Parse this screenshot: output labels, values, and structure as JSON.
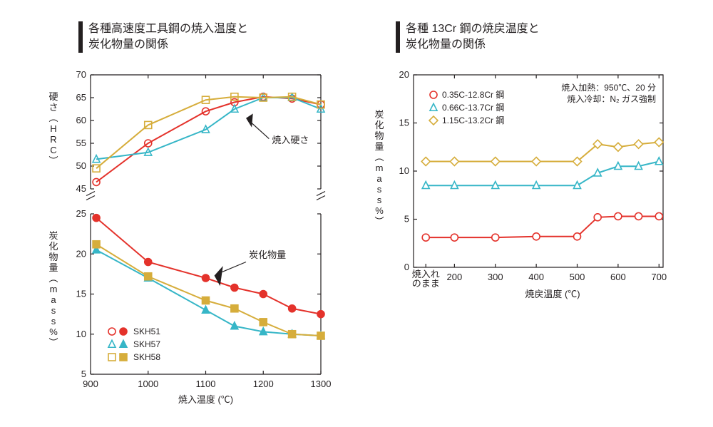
{
  "left": {
    "title_line1": "各種高速度工具鋼の焼入温度と",
    "title_line2": "炭化物量の関係",
    "title_fontsize": 16,
    "title_bar_color": "#231f20",
    "background_color": "#ffffff",
    "axis_color": "#231f20",
    "xlabel": "焼入温度 (℃)",
    "xlim": [
      900,
      1300
    ],
    "xticks": [
      900,
      1000,
      1100,
      1200,
      1300
    ],
    "top_panel": {
      "ylabel_chars": [
        "硬",
        "さ",
        "︵",
        "H",
        "R",
        "C",
        "︶"
      ],
      "ylim": [
        45,
        70
      ],
      "yticks": [
        45,
        50,
        55,
        60,
        65,
        70
      ],
      "annotation": "焼入硬さ",
      "series": [
        {
          "name": "SKH51",
          "color": "#e4322b",
          "marker": "circle",
          "fill": "none",
          "data": [
            [
              910,
              46.5
            ],
            [
              1000,
              55
            ],
            [
              1100,
              62
            ],
            [
              1150,
              64
            ],
            [
              1200,
              65.2
            ],
            [
              1250,
              64.8
            ],
            [
              1300,
              63.5
            ]
          ]
        },
        {
          "name": "SKH57",
          "color": "#36b6c7",
          "marker": "triangle",
          "fill": "none",
          "data": [
            [
              910,
              51.5
            ],
            [
              1000,
              53
            ],
            [
              1100,
              58
            ],
            [
              1150,
              62.5
            ],
            [
              1200,
              65
            ],
            [
              1250,
              65
            ],
            [
              1300,
              62.5
            ]
          ]
        },
        {
          "name": "SKH58",
          "color": "#d6ad3b",
          "marker": "square",
          "fill": "none",
          "data": [
            [
              910,
              49.5
            ],
            [
              1000,
              59
            ],
            [
              1100,
              64.5
            ],
            [
              1150,
              65.2
            ],
            [
              1200,
              65
            ],
            [
              1250,
              65.2
            ],
            [
              1300,
              63.5
            ]
          ]
        }
      ]
    },
    "bottom_panel": {
      "ylabel_chars": [
        "炭",
        "化",
        "物",
        "量",
        "︵",
        "m",
        "a",
        "s",
        "s",
        "%",
        "︶"
      ],
      "ylim": [
        5,
        25
      ],
      "yticks": [
        5,
        10,
        15,
        20,
        25
      ],
      "annotation": "炭化物量",
      "series": [
        {
          "name": "SKH51",
          "color": "#e4322b",
          "marker": "circle",
          "fill": "#e4322b",
          "data": [
            [
              910,
              24.5
            ],
            [
              1000,
              19
            ],
            [
              1100,
              17
            ],
            [
              1150,
              15.8
            ],
            [
              1200,
              15
            ],
            [
              1250,
              13.2
            ],
            [
              1300,
              12.5
            ]
          ]
        },
        {
          "name": "SKH57",
          "color": "#36b6c7",
          "marker": "triangle",
          "fill": "#36b6c7",
          "data": [
            [
              910,
              20.5
            ],
            [
              1000,
              17
            ],
            [
              1100,
              13
            ],
            [
              1150,
              11
            ],
            [
              1200,
              10.3
            ],
            [
              1250,
              10
            ],
            [
              1300,
              9.8
            ]
          ]
        },
        {
          "name": "SKH58",
          "color": "#d6ad3b",
          "marker": "square",
          "fill": "#d6ad3b",
          "data": [
            [
              910,
              21.2
            ],
            [
              1000,
              17.2
            ],
            [
              1100,
              14.2
            ],
            [
              1150,
              13.2
            ],
            [
              1200,
              11.5
            ],
            [
              1250,
              10
            ],
            [
              1300,
              9.8
            ]
          ]
        }
      ]
    },
    "legend": {
      "items": [
        {
          "label": "SKH51",
          "color": "#e4322b",
          "marker": "circle"
        },
        {
          "label": "SKH57",
          "color": "#36b6c7",
          "marker": "triangle"
        },
        {
          "label": "SKH58",
          "color": "#d6ad3b",
          "marker": "square"
        }
      ]
    }
  },
  "right": {
    "title_line1": "各種 13Cr 鋼の焼戻温度と",
    "title_line2": "炭化物量の関係",
    "title_fontsize": 16,
    "background_color": "#ffffff",
    "axis_color": "#231f20",
    "xlabel": "焼戻温度 (℃)",
    "x_first_tick_line1": "焼入れ",
    "x_first_tick_line2": "のまま",
    "xlim": [
      100,
      710
    ],
    "xticks_num": [
      200,
      300,
      400,
      500,
      600,
      700
    ],
    "ylabel_chars": [
      "炭",
      "化",
      "物",
      "量",
      "︵",
      "m",
      "a",
      "s",
      "s",
      "%",
      "︶"
    ],
    "ylim": [
      0,
      20
    ],
    "yticks": [
      0,
      5,
      10,
      15,
      20
    ],
    "cond_line1": "焼入加熱：950℃、20 分",
    "cond_line2": "焼入冷却：N₂ ガス強制",
    "series": [
      {
        "name": "0.35C-12.8Cr 鋼",
        "color": "#e4322b",
        "marker": "circle",
        "data": [
          [
            130,
            3.1
          ],
          [
            200,
            3.1
          ],
          [
            300,
            3.1
          ],
          [
            400,
            3.2
          ],
          [
            500,
            3.2
          ],
          [
            550,
            5.2
          ],
          [
            600,
            5.3
          ],
          [
            650,
            5.3
          ],
          [
            700,
            5.3
          ]
        ]
      },
      {
        "name": "0.66C-13.7Cr 鋼",
        "color": "#36b6c7",
        "marker": "triangle",
        "data": [
          [
            130,
            8.5
          ],
          [
            200,
            8.5
          ],
          [
            300,
            8.5
          ],
          [
            400,
            8.5
          ],
          [
            500,
            8.5
          ],
          [
            550,
            9.8
          ],
          [
            600,
            10.5
          ],
          [
            650,
            10.5
          ],
          [
            700,
            11
          ]
        ]
      },
      {
        "name": "1.15C-13.2Cr 鋼",
        "color": "#d6ad3b",
        "marker": "diamond",
        "data": [
          [
            130,
            11
          ],
          [
            200,
            11
          ],
          [
            300,
            11
          ],
          [
            400,
            11
          ],
          [
            500,
            11
          ],
          [
            550,
            12.8
          ],
          [
            600,
            12.5
          ],
          [
            650,
            12.8
          ],
          [
            700,
            13
          ]
        ]
      }
    ],
    "legend": {
      "items": [
        {
          "label": "0.35C-12.8Cr 鋼",
          "color": "#e4322b",
          "marker": "circle"
        },
        {
          "label": "0.66C-13.7Cr 鋼",
          "color": "#36b6c7",
          "marker": "triangle"
        },
        {
          "label": "1.15C-13.2Cr 鋼",
          "color": "#d6ad3b",
          "marker": "diamond"
        }
      ]
    }
  }
}
